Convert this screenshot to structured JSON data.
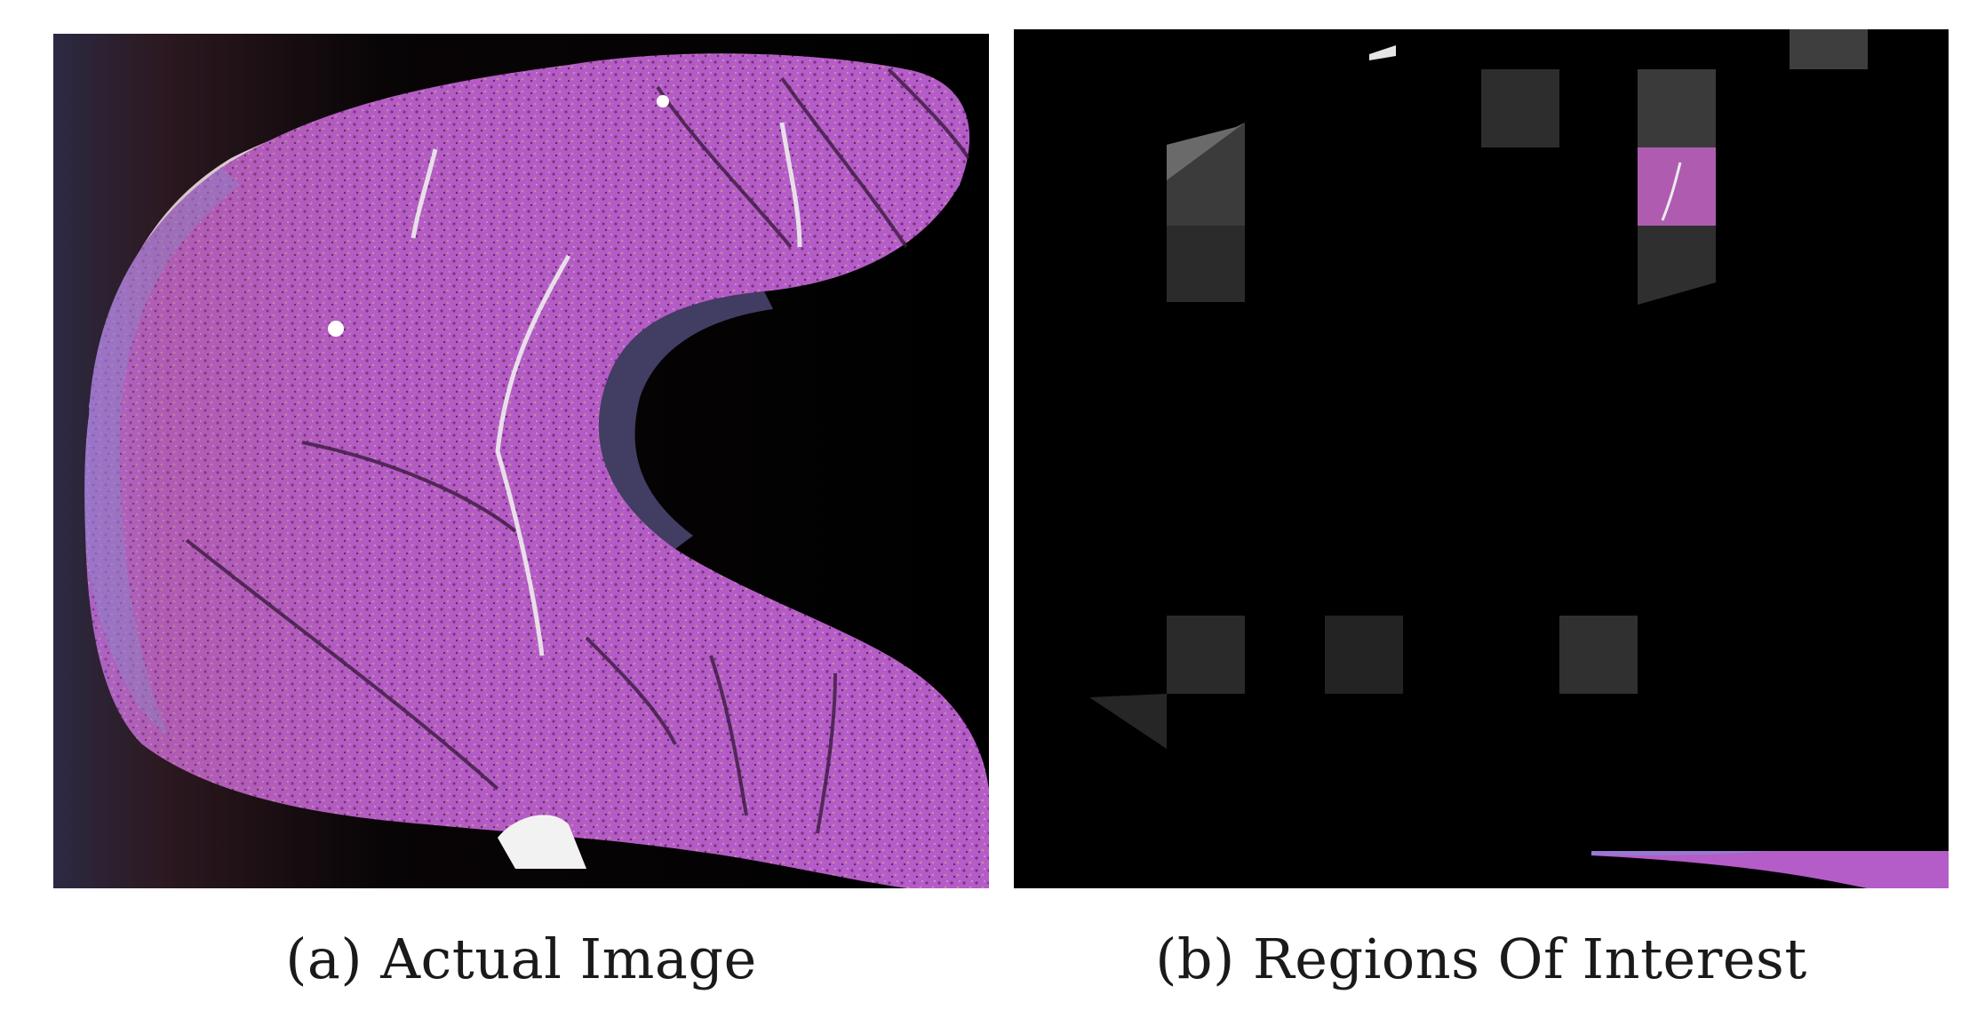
{
  "figure": {
    "panels": [
      {
        "id": "a",
        "caption": "(a) Actual Image",
        "content": "tissue-slide-photo"
      },
      {
        "id": "b",
        "caption": "(b) Regions Of Interest",
        "content": "roi-tile-map"
      }
    ]
  },
  "colors": {
    "background": "#000000",
    "stain_magenta": "#b45cc8",
    "stain_brown": "#a65d7a",
    "stain_blue": "#8b86d6",
    "highlight_white": "#e6e6e6",
    "roi_gray": "#3a3a3a"
  }
}
